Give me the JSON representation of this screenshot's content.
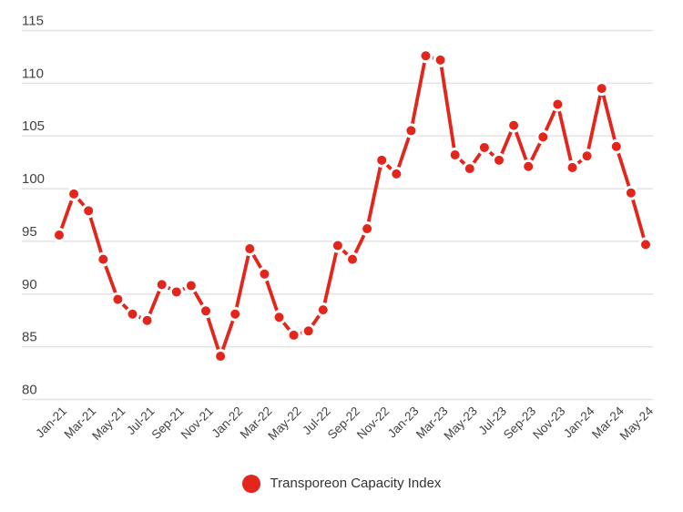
{
  "chart_data": {
    "type": "line",
    "title": "",
    "xlabel": "",
    "ylabel": "",
    "x": [
      "Jan-21",
      "Feb-21",
      "Mar-21",
      "Apr-21",
      "May-21",
      "Jun-21",
      "Jul-21",
      "Aug-21",
      "Sep-21",
      "Oct-21",
      "Nov-21",
      "Dec-21",
      "Jan-22",
      "Feb-22",
      "Mar-22",
      "Apr-22",
      "May-22",
      "Jun-22",
      "Jul-22",
      "Aug-22",
      "Sep-22",
      "Oct-22",
      "Nov-22",
      "Dec-22",
      "Jan-23",
      "Feb-23",
      "Mar-23",
      "Apr-23",
      "May-23",
      "Jun-23",
      "Jul-23",
      "Aug-23",
      "Sep-23",
      "Oct-23",
      "Nov-23",
      "Dec-23",
      "Jan-24",
      "Feb-24",
      "Mar-24",
      "Apr-24",
      "May-24"
    ],
    "series": [
      {
        "name": "Transporeon Capacity Index",
        "values": [
          95.6,
          99.5,
          97.9,
          93.3,
          89.5,
          88.1,
          87.5,
          90.9,
          90.2,
          90.8,
          88.4,
          84.1,
          88.1,
          94.3,
          91.9,
          87.8,
          86.1,
          86.5,
          88.5,
          94.6,
          93.3,
          96.2,
          102.7,
          101.4,
          105.5,
          112.6,
          112.2,
          103.2,
          101.9,
          103.9,
          102.7,
          106.0,
          102.1,
          104.9,
          108.0,
          102.0,
          103.1,
          109.5,
          104.0,
          99.6,
          94.7
        ]
      }
    ],
    "ylim": [
      80,
      115
    ],
    "y_ticks": [
      115,
      110,
      105,
      100,
      95,
      90,
      85,
      80
    ],
    "x_tick_interval": 2,
    "x_tick_rotation_deg": -45,
    "grid": "horizontal-only",
    "legend_position": "bottom-center"
  },
  "colors": {
    "series": "#E2261B",
    "point_halo": "#FFFFFF",
    "gridline": "#E3E3E3",
    "axis_text": "#424242",
    "legend_text": "#333333",
    "background": "#FFFFFF"
  }
}
